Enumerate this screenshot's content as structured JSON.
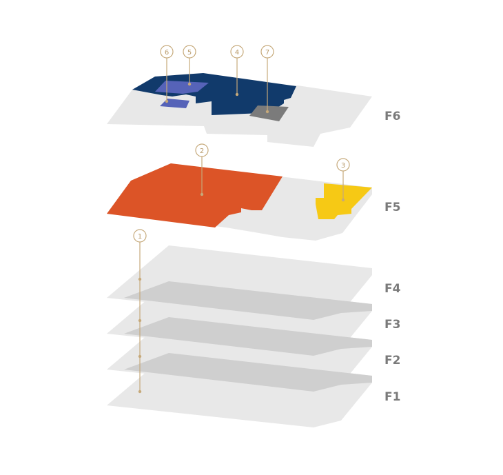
{
  "floors": [
    {
      "id": "F1",
      "label": "F1"
    },
    {
      "id": "F2",
      "label": "F2"
    },
    {
      "id": "F3",
      "label": "F3"
    },
    {
      "id": "F4",
      "label": "F4"
    },
    {
      "id": "F5",
      "label": "F5"
    },
    {
      "id": "F6",
      "label": "F6"
    }
  ],
  "markers": [
    {
      "id": "1",
      "label": "1"
    },
    {
      "id": "2",
      "label": "2"
    },
    {
      "id": "3",
      "label": "3"
    },
    {
      "id": "4",
      "label": "4"
    },
    {
      "id": "5",
      "label": "5"
    },
    {
      "id": "6",
      "label": "6"
    },
    {
      "id": "7",
      "label": "7"
    }
  ],
  "colors": {
    "slab": "#e8e8e8",
    "slab_shadow": "#cfcfcf",
    "zone_2": "#dc5427",
    "zone_3": "#f6c915",
    "zone_4": "#113a6b",
    "zone_5": "#5663b8",
    "zone_6": "#5663b8",
    "zone_7": "#7b7b7b",
    "marker": "#c6a97a",
    "floor_label": "#7a7a7a"
  }
}
